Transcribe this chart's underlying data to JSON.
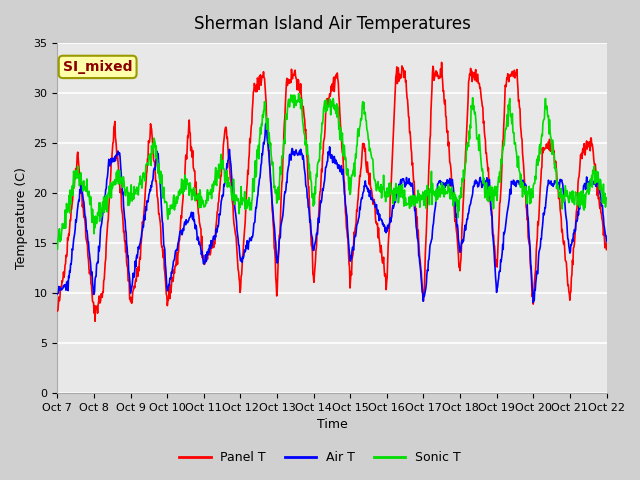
{
  "title": "Sherman Island Air Temperatures",
  "xlabel": "Time",
  "ylabel": "Temperature (C)",
  "ylim": [
    0,
    35
  ],
  "xlim": [
    0,
    15
  ],
  "yticks": [
    0,
    5,
    10,
    15,
    20,
    25,
    30,
    35
  ],
  "xtick_labels": [
    "Oct 7",
    "Oct 8",
    "Oct 9",
    "Oct 10",
    "Oct 11",
    "Oct 12",
    "Oct 13",
    "Oct 14",
    "Oct 15",
    "Oct 16",
    "Oct 17",
    "Oct 18",
    "Oct 19",
    "Oct 20",
    "Oct 21",
    "Oct 22"
  ],
  "fig_bg_color": "#d0d0d0",
  "ax_bg_color": "#e8e8e8",
  "grid_color": "#ffffff",
  "annotation_text": "SI_mixed",
  "annotation_text_color": "#8b0000",
  "annotation_bg_color": "#ffffaa",
  "annotation_border_color": "#999900",
  "panel_color": "#ff0000",
  "air_color": "#0000ff",
  "sonic_color": "#00dd00",
  "line_width": 1.2,
  "legend_labels": [
    "Panel T",
    "Air T",
    "Sonic T"
  ],
  "title_fontsize": 12,
  "axis_label_fontsize": 9,
  "tick_fontsize": 8,
  "legend_fontsize": 9,
  "panel_key_times": [
    0,
    0.25,
    0.55,
    1.0,
    1.25,
    1.55,
    2.0,
    2.25,
    2.55,
    3.0,
    3.3,
    3.6,
    4.0,
    4.3,
    4.6,
    5.0,
    5.35,
    5.65,
    6.0,
    6.25,
    6.5,
    6.75,
    7.0,
    7.35,
    7.65,
    8.0,
    8.35,
    9.0,
    9.25,
    9.5,
    10.0,
    10.25,
    10.5,
    11.0,
    11.25,
    11.55,
    12.0,
    12.25,
    12.55,
    13.0,
    13.25,
    13.55,
    14.0,
    14.3,
    14.6,
    15.0
  ],
  "panel_key_vals": [
    8,
    14,
    24,
    8,
    10,
    27,
    9,
    13,
    27,
    9,
    14,
    27,
    13,
    15,
    27,
    10,
    30,
    32,
    10,
    31,
    32,
    28,
    11,
    29,
    32,
    11,
    25,
    11,
    32,
    32,
    9,
    32,
    32,
    12,
    32,
    31,
    12,
    31,
    32,
    9,
    24,
    25,
    9,
    24,
    25,
    14
  ],
  "air_key_times": [
    0,
    0.3,
    0.65,
    1.0,
    1.4,
    1.7,
    2.0,
    2.4,
    2.75,
    3.0,
    3.35,
    3.7,
    4.0,
    4.35,
    4.7,
    5.0,
    5.35,
    5.7,
    6.0,
    6.35,
    6.7,
    7.0,
    7.4,
    7.8,
    8.0,
    8.4,
    9.0,
    9.35,
    9.7,
    10.0,
    10.4,
    10.8,
    11.0,
    11.4,
    11.8,
    12.0,
    12.4,
    12.8,
    13.0,
    13.4,
    13.8,
    14.0,
    14.4,
    14.8,
    15.0
  ],
  "air_key_vals": [
    10,
    11,
    21,
    10,
    23,
    24,
    10,
    18,
    24,
    10,
    16,
    18,
    13,
    16,
    24,
    13,
    16,
    27,
    13,
    24,
    24,
    14,
    24,
    22,
    13,
    21,
    16,
    21,
    21,
    9,
    21,
    21,
    14,
    21,
    21,
    10,
    21,
    21,
    9,
    21,
    21,
    14,
    21,
    21,
    15
  ],
  "sonic_key_times": [
    0,
    0.2,
    0.5,
    0.85,
    1.0,
    1.3,
    1.65,
    2.0,
    2.3,
    2.65,
    3.0,
    3.3,
    3.5,
    3.7,
    4.0,
    4.2,
    4.5,
    4.75,
    5.0,
    5.3,
    5.65,
    6.0,
    6.3,
    6.65,
    7.0,
    7.3,
    7.65,
    8.0,
    8.35,
    8.7,
    9.0,
    9.3,
    9.65,
    10.0,
    10.35,
    10.7,
    11.0,
    11.35,
    11.7,
    12.0,
    12.35,
    12.7,
    13.0,
    13.35,
    13.7,
    14.0,
    14.35,
    14.7,
    15.0
  ],
  "sonic_key_vals": [
    15,
    17,
    22,
    20,
    17,
    19,
    22,
    19,
    21,
    25,
    18,
    20,
    21,
    20,
    19,
    20,
    23,
    20,
    19,
    19,
    29,
    19,
    29,
    29,
    19,
    29,
    28,
    20,
    29,
    21,
    20,
    20,
    19,
    20,
    20,
    20,
    19,
    29,
    20,
    20,
    29,
    20,
    20,
    29,
    20,
    20,
    19,
    22,
    19
  ]
}
